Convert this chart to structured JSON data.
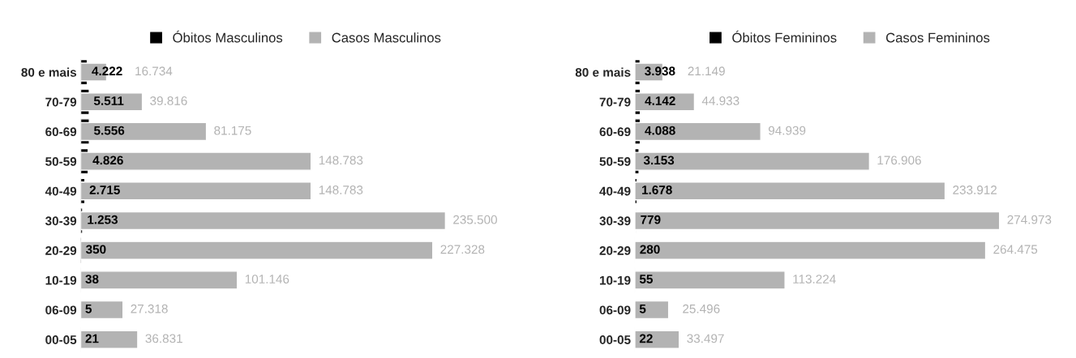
{
  "chart_data": [
    {
      "type": "bar",
      "orientation": "horizontal",
      "legend": "top",
      "categories": [
        "80 e mais",
        "70-79",
        "60-69",
        "50-59",
        "40-49",
        "30-39",
        "20-29",
        "10-19",
        "06-09",
        "00-05"
      ],
      "series": [
        {
          "name": "Óbitos Masculinos",
          "color": "#000000",
          "values": [
            4222,
            5511,
            5556,
            4826,
            2715,
            1253,
            350,
            38,
            5,
            21
          ],
          "value_labels": [
            "4.222",
            "5.511",
            "5.556",
            "4.826",
            "2.715",
            "1.253",
            "350",
            "38",
            "5",
            "21"
          ]
        },
        {
          "name": "Casos Masculinos",
          "color": "#b3b3b3",
          "values": [
            16734,
            39816,
            81175,
            148783,
            148783,
            235500,
            227328,
            101146,
            27318,
            36831
          ],
          "value_labels": [
            "16.734",
            "39.816",
            "81.175",
            "148.783",
            "148.783",
            "235.500",
            "227.328",
            "101.146",
            "27.318",
            "36.831"
          ]
        }
      ]
    },
    {
      "type": "bar",
      "orientation": "horizontal",
      "legend": "top",
      "categories": [
        "80 e mais",
        "70-79",
        "60-69",
        "50-59",
        "40-49",
        "30-39",
        "20-29",
        "10-19",
        "06-09",
        "00-05"
      ],
      "series": [
        {
          "name": "Óbitos Femininos",
          "color": "#000000",
          "values": [
            3938,
            4142,
            4088,
            3153,
            1678,
            779,
            280,
            55,
            5,
            22
          ],
          "value_labels": [
            "3.938",
            "4.142",
            "4.088",
            "3.153",
            "1.678",
            "779",
            "280",
            "55",
            "5",
            "22"
          ]
        },
        {
          "name": "Casos Femininos",
          "color": "#b3b3b3",
          "values": [
            21149,
            44933,
            94939,
            176906,
            233912,
            274973,
            264475,
            113224,
            25496,
            33497
          ],
          "value_labels": [
            "21.149",
            "44.933",
            "94.939",
            "176.906",
            "233.912",
            "274.973",
            "264.475",
            "113.224",
            "25.496",
            "33.497"
          ]
        }
      ]
    }
  ]
}
